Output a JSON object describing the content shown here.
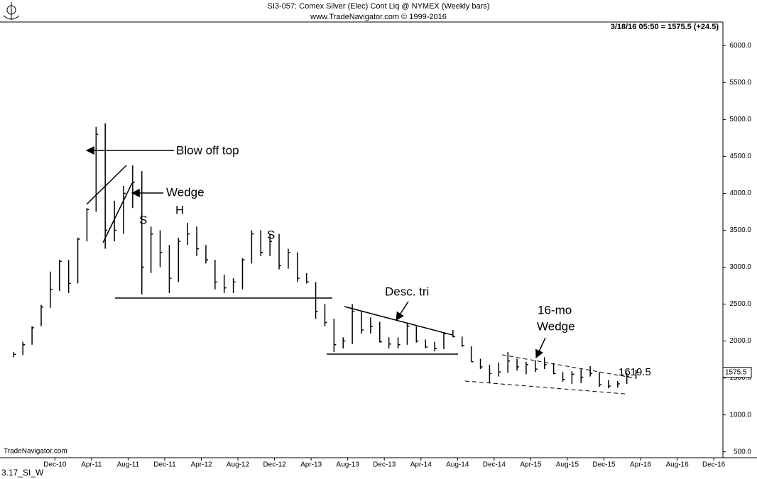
{
  "chart_data": {
    "type": "ohlc",
    "title": "SI3-057:  Comex Silver (Elec) Cont Liq @ NYMEX  (Weekly bars)",
    "subtitle": "www.TradeNavigator.com © 1999-2016",
    "quote": "3/18/16 05:50 = 1575.5 (+24.5)",
    "watermark": "TradeNavigator.com",
    "footer": "3.17_SI_W",
    "annotations": [
      "Blow off top",
      "Wedge",
      "S",
      "H",
      "S",
      "Desc. tri",
      "16-mo",
      "Wedge",
      "1619.5"
    ],
    "x": [
      "2010-07",
      "2010-08",
      "2010-09",
      "2010-10",
      "2010-11",
      "2010-12",
      "2011-01",
      "2011-02",
      "2011-03",
      "2011-04",
      "2011-05",
      "2011-06",
      "2011-07",
      "2011-08",
      "2011-09",
      "2011-10",
      "2011-11",
      "2011-12",
      "2012-01",
      "2012-02",
      "2012-03",
      "2012-04",
      "2012-05",
      "2012-06",
      "2012-07",
      "2012-08",
      "2012-09",
      "2012-10",
      "2012-11",
      "2012-12",
      "2013-01",
      "2013-02",
      "2013-03",
      "2013-04",
      "2013-05",
      "2013-06",
      "2013-07",
      "2013-08",
      "2013-09",
      "2013-10",
      "2013-11",
      "2013-12",
      "2014-01",
      "2014-02",
      "2014-03",
      "2014-04",
      "2014-05",
      "2014-06",
      "2014-07",
      "2014-08",
      "2014-09",
      "2014-10",
      "2014-11",
      "2014-12",
      "2015-01",
      "2015-02",
      "2015-03",
      "2015-04",
      "2015-05",
      "2015-06",
      "2015-07",
      "2015-08",
      "2015-09",
      "2015-10",
      "2015-11",
      "2015-12",
      "2016-01",
      "2016-02",
      "2016-03"
    ],
    "series": [
      {
        "color": "#000000",
        "high": [
          1850,
          1990,
          2200,
          2490,
          2940,
          3100,
          3100,
          3400,
          3800,
          4900,
          4950,
          3900,
          4100,
          4380,
          4300,
          3550,
          3500,
          3300,
          3400,
          3600,
          3550,
          3300,
          3100,
          2900,
          2850,
          3120,
          3500,
          3500,
          3440,
          3450,
          3250,
          3200,
          2920,
          2800,
          2500,
          2300,
          2050,
          2500,
          2400,
          2320,
          2260,
          2050,
          2050,
          2250,
          2200,
          2020,
          1990,
          2120,
          2150,
          2060,
          1930,
          1760,
          1680,
          1710,
          1850,
          1760,
          1720,
          1740,
          1780,
          1700,
          1580,
          1590,
          1620,
          1660,
          1580,
          1470,
          1460,
          1570,
          1610
        ],
        "low": [
          1780,
          1810,
          1950,
          2200,
          2450,
          2680,
          2650,
          2780,
          3350,
          3750,
          3250,
          3350,
          3450,
          3800,
          2630,
          2920,
          3000,
          2650,
          2800,
          3300,
          3150,
          3050,
          2700,
          2650,
          2650,
          2700,
          3050,
          3150,
          3150,
          2970,
          2980,
          2800,
          2780,
          2300,
          2200,
          1850,
          1900,
          1960,
          2100,
          2100,
          1980,
          1900,
          1900,
          1950,
          1980,
          1900,
          1860,
          1890,
          2050,
          1920,
          1720,
          1620,
          1430,
          1520,
          1570,
          1600,
          1550,
          1580,
          1620,
          1550,
          1450,
          1420,
          1430,
          1520,
          1380,
          1360,
          1370,
          1420,
          1490
        ],
        "close": [
          1820,
          1950,
          2180,
          2460,
          2700,
          3080,
          2780,
          3380,
          3780,
          4800,
          3500,
          3500,
          4000,
          4150,
          3000,
          3450,
          3200,
          2850,
          3350,
          3450,
          3250,
          3100,
          2800,
          2720,
          2800,
          3100,
          3450,
          3200,
          3350,
          3020,
          3200,
          2850,
          2800,
          2400,
          2250,
          1950,
          2000,
          2400,
          2150,
          2200,
          1990,
          1960,
          1950,
          2200,
          2000,
          1920,
          1900,
          2100,
          2060,
          1940,
          1720,
          1650,
          1560,
          1580,
          1730,
          1650,
          1680,
          1620,
          1680,
          1560,
          1480,
          1550,
          1510,
          1560,
          1410,
          1390,
          1420,
          1520,
          1575.5
        ]
      }
    ],
    "xlim": [
      "2010-06",
      "2017-01"
    ],
    "xticks": [
      {
        "value": "2010-12",
        "label": "Dec-10"
      },
      {
        "value": "2011-04",
        "label": "Apr-11"
      },
      {
        "value": "2011-08",
        "label": "Aug-11"
      },
      {
        "value": "2011-12",
        "label": "Dec-11"
      },
      {
        "value": "2012-04",
        "label": "Apr-12"
      },
      {
        "value": "2012-08",
        "label": "Aug-12"
      },
      {
        "value": "2012-12",
        "label": "Dec-12"
      },
      {
        "value": "2013-04",
        "label": "Apr-13"
      },
      {
        "value": "2013-08",
        "label": "Aug-13"
      },
      {
        "value": "2013-12",
        "label": "Dec-13"
      },
      {
        "value": "2014-04",
        "label": "Apr-14"
      },
      {
        "value": "2014-08",
        "label": "Aug-14"
      },
      {
        "value": "2014-12",
        "label": "Dec-14"
      },
      {
        "value": "2015-04",
        "label": "Apr-15"
      },
      {
        "value": "2015-08",
        "label": "Aug-15"
      },
      {
        "value": "2015-12",
        "label": "Dec-15"
      },
      {
        "value": "2016-04",
        "label": "Apr-16"
      },
      {
        "value": "2016-08",
        "label": "Aug-16"
      },
      {
        "value": "2016-12",
        "label": "Dec-16"
      }
    ],
    "ylim": [
      420,
      6320
    ],
    "yticks": [
      {
        "value": 500,
        "label": "500.0"
      },
      {
        "value": 1000,
        "label": "1000.0"
      },
      {
        "value": 1500,
        "label": "1500.0"
      },
      {
        "value": 2000,
        "label": "2000.0"
      },
      {
        "value": 2500,
        "label": "2500.0"
      },
      {
        "value": 3000,
        "label": "3000.0"
      },
      {
        "value": 3500,
        "label": "3500.0"
      },
      {
        "value": 4000,
        "label": "4000.0"
      },
      {
        "value": 4500,
        "label": "4500.0"
      },
      {
        "value": 5000,
        "label": "5000.0"
      },
      {
        "value": 5500,
        "label": "5500.0"
      },
      {
        "value": 6000,
        "label": "6000.0"
      }
    ]
  }
}
